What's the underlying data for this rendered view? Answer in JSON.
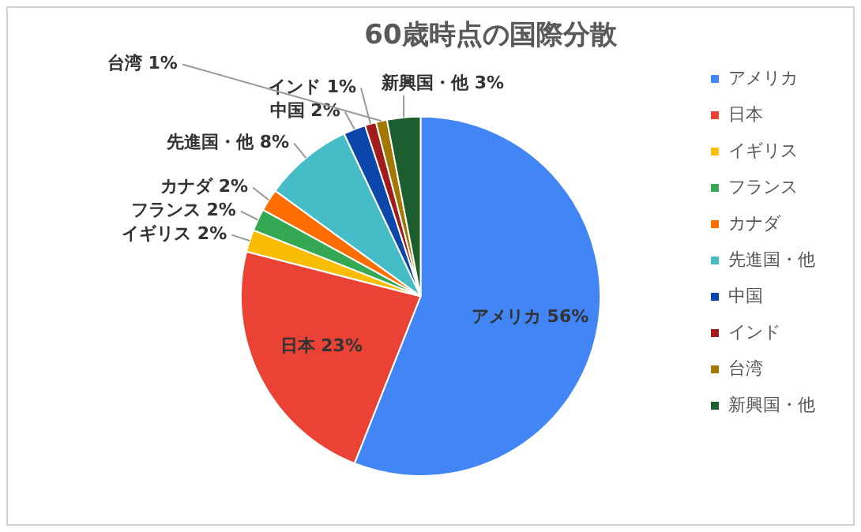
{
  "chart_data": {
    "type": "pie",
    "title": "60歳時点の国際分散",
    "categories": [
      "アメリカ",
      "日本",
      "イギリス",
      "フランス",
      "カナダ",
      "先進国・他",
      "中国",
      "インド",
      "台湾",
      "新興国・他"
    ],
    "values": [
      56,
      23,
      2,
      2,
      2,
      8,
      2,
      1,
      1,
      3
    ],
    "value_labels": [
      "56%",
      "23%",
      "2%",
      "2%",
      "2%",
      "8%",
      "2%",
      "1%",
      "1%",
      "3%"
    ],
    "colors": [
      "#4285f4",
      "#ea4335",
      "#fbbc04",
      "#34a853",
      "#ff6d01",
      "#46bdc6",
      "#0b46ab",
      "#a31c1c",
      "#a37800",
      "#1c5e2e"
    ],
    "legend": "right"
  }
}
